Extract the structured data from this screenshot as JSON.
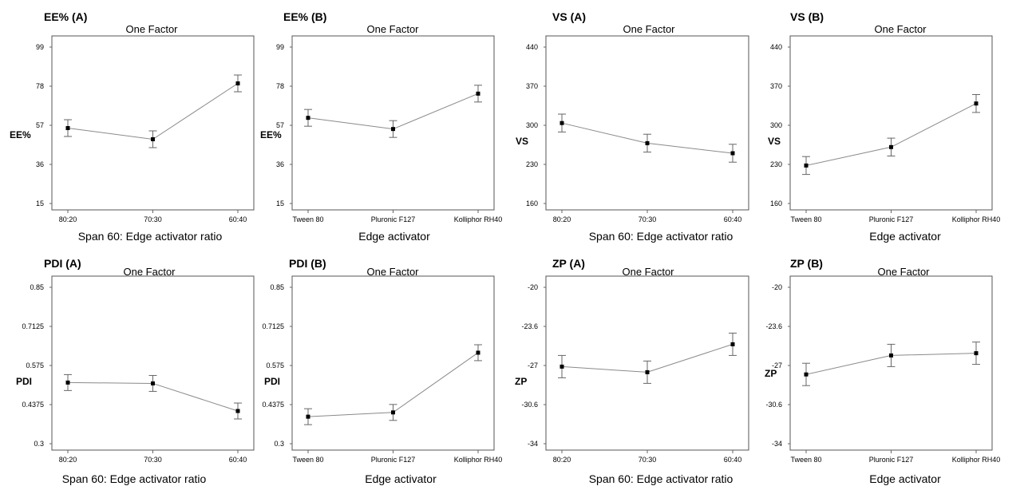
{
  "chart_data": [
    {
      "type": "line",
      "title": "EE% (A)",
      "subtitle": "One Factor",
      "ylabel": "EE%",
      "xlabel": "Span 60: Edge activator ratio",
      "categories": [
        "80:20",
        "70:30",
        "60:40"
      ],
      "yticks": [
        "15",
        "36",
        "57",
        "78",
        "99"
      ],
      "ylim": [
        15,
        99
      ],
      "values": [
        55.5,
        49.5,
        79.5
      ],
      "errors": [
        4.5,
        4.5,
        4.5
      ],
      "grid": false
    },
    {
      "type": "line",
      "title": "EE% (B)",
      "subtitle": "One Factor",
      "ylabel": "EE%",
      "xlabel": "Edge activator",
      "categories": [
        "Tween 80",
        "Pluronic F127",
        "Kolliphor RH40"
      ],
      "yticks": [
        "15",
        "36",
        "57",
        "78",
        "99"
      ],
      "ylim": [
        15,
        99
      ],
      "values": [
        61,
        55,
        74
      ],
      "errors": [
        4.5,
        4.5,
        4.5
      ],
      "grid": false
    },
    {
      "type": "line",
      "title": "VS (A)",
      "subtitle": "One Factor",
      "ylabel": "VS",
      "xlabel": "Span 60: Edge activator ratio",
      "categories": [
        "80:20",
        "70:30",
        "60:40"
      ],
      "yticks": [
        "160",
        "230",
        "300",
        "370",
        "440"
      ],
      "ylim": [
        160,
        440
      ],
      "values": [
        304,
        268,
        250
      ],
      "errors": [
        16,
        16,
        16
      ],
      "grid": false
    },
    {
      "type": "line",
      "title": "VS (B)",
      "subtitle": "One Factor",
      "ylabel": "VS",
      "xlabel": "Edge activator",
      "categories": [
        "Tween 80",
        "Pluronic F127",
        "Kolliphor RH40"
      ],
      "yticks": [
        "160",
        "230",
        "300",
        "370",
        "440"
      ],
      "ylim": [
        160,
        440
      ],
      "values": [
        228,
        261,
        339
      ],
      "errors": [
        16,
        16,
        16
      ],
      "grid": false
    },
    {
      "type": "line",
      "title": "PDI (A)",
      "subtitle": "One Factor",
      "ylabel": "PDI",
      "xlabel": "Span 60: Edge activator ratio",
      "categories": [
        "80:20",
        "70:30",
        "60:40"
      ],
      "yticks": [
        "0.3",
        "0.4375",
        "0.575",
        "0.7125",
        "0.85"
      ],
      "ylim": [
        0.3,
        0.85
      ],
      "values": [
        0.515,
        0.512,
        0.415
      ],
      "errors": [
        0.028,
        0.028,
        0.028
      ],
      "grid": false
    },
    {
      "type": "line",
      "title": "PDI (B)",
      "subtitle": "One Factor",
      "ylabel": "PDI",
      "xlabel": "Edge activator",
      "categories": [
        "Tween 80",
        "Pluronic F127",
        "Kolliphor RH40"
      ],
      "yticks": [
        "0.3",
        "0.4375",
        "0.575",
        "0.7125",
        "0.85"
      ],
      "ylim": [
        0.3,
        0.85
      ],
      "values": [
        0.395,
        0.41,
        0.62
      ],
      "errors": [
        0.028,
        0.028,
        0.028
      ],
      "grid": false
    },
    {
      "type": "line",
      "title": "ZP (A)",
      "subtitle": "One Factor",
      "ylabel": "ZP",
      "xlabel": "Span 60: Edge activator ratio",
      "categories": [
        "80:20",
        "70:30",
        "60:40"
      ],
      "yticks": [
        "-34",
        "-30.6",
        "-27",
        "-23.6",
        "-20"
      ],
      "ylim": [
        -34,
        -20
      ],
      "values": [
        -27.1,
        -27.6,
        -25.1
      ],
      "errors": [
        1.0,
        1.0,
        1.0
      ],
      "grid": false
    },
    {
      "type": "line",
      "title": "ZP (B)",
      "subtitle": "One Factor",
      "ylabel": "ZP",
      "xlabel": "Edge activator",
      "categories": [
        "Tween 80",
        "Pluronic F127",
        "Kolliphor RH40"
      ],
      "yticks": [
        "-34",
        "-30.6",
        "-27",
        "-23.6",
        "-20"
      ],
      "ylim": [
        -34,
        -20
      ],
      "values": [
        -27.8,
        -26.1,
        -25.9
      ],
      "errors": [
        1.0,
        1.0,
        1.0
      ],
      "grid": false
    }
  ]
}
